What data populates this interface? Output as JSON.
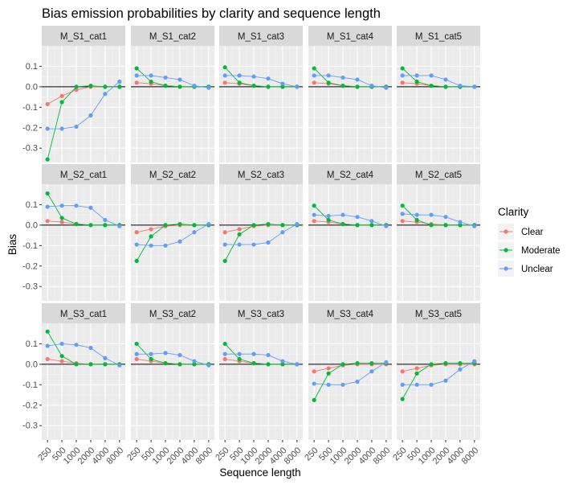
{
  "chart_data": {
    "type": "line",
    "title": "Bias emission probabilities by clarity and sequence length",
    "xlabel": "Sequence length",
    "ylabel": "Bias",
    "x": [
      "250",
      "500",
      "1000",
      "2000",
      "4000",
      "8000"
    ],
    "ylim": [
      -0.37,
      0.2
    ],
    "yticks": [
      0.1,
      0.0,
      -0.1,
      -0.2,
      -0.3
    ],
    "ytick_labels": [
      "0.1",
      "0.0",
      "-0.1",
      "-0.2",
      "-0.3"
    ],
    "hline": 0,
    "grid": true,
    "legend": {
      "title": "Clarity",
      "position": "right",
      "entries": [
        {
          "name": "Clear",
          "color": "#F8766D"
        },
        {
          "name": "Moderate",
          "color": "#00BA38"
        },
        {
          "name": "Unclear",
          "color": "#619CFF"
        }
      ]
    },
    "facets": [
      {
        "label": "M_S1_cat1",
        "series": {
          "Clear": [
            -0.085,
            -0.045,
            -0.015,
            0.0,
            0.0,
            0.0
          ],
          "Moderate": [
            -0.355,
            -0.075,
            0.0,
            0.005,
            0.0,
            0.0
          ],
          "Unclear": [
            -0.205,
            -0.205,
            -0.195,
            -0.14,
            -0.035,
            0.025
          ]
        }
      },
      {
        "label": "M_S1_cat2",
        "series": {
          "Clear": [
            0.02,
            0.015,
            0.005,
            0.0,
            0.0,
            0.0
          ],
          "Moderate": [
            0.09,
            0.025,
            0.005,
            0.0,
            0.0,
            0.0
          ],
          "Unclear": [
            0.055,
            0.055,
            0.045,
            0.035,
            0.005,
            -0.005
          ]
        }
      },
      {
        "label": "M_S1_cat3",
        "series": {
          "Clear": [
            0.02,
            0.015,
            0.005,
            0.0,
            0.0,
            0.0
          ],
          "Moderate": [
            0.095,
            0.02,
            0.005,
            0.0,
            0.0,
            0.0
          ],
          "Unclear": [
            0.055,
            0.055,
            0.05,
            0.04,
            0.015,
            0.0
          ]
        }
      },
      {
        "label": "M_S1_cat4",
        "series": {
          "Clear": [
            0.02,
            0.015,
            0.005,
            0.0,
            0.0,
            0.0
          ],
          "Moderate": [
            0.09,
            0.02,
            0.005,
            0.0,
            0.0,
            0.0
          ],
          "Unclear": [
            0.055,
            0.055,
            0.045,
            0.035,
            0.005,
            -0.005
          ]
        }
      },
      {
        "label": "M_S1_cat5",
        "series": {
          "Clear": [
            0.02,
            0.015,
            0.005,
            0.0,
            0.0,
            0.0
          ],
          "Moderate": [
            0.09,
            0.025,
            0.005,
            0.0,
            0.0,
            0.0
          ],
          "Unclear": [
            0.055,
            0.055,
            0.055,
            0.035,
            0.005,
            0.0
          ]
        }
      },
      {
        "label": "M_S2_cat1",
        "series": {
          "Clear": [
            0.02,
            0.015,
            0.005,
            0.0,
            0.0,
            0.0
          ],
          "Moderate": [
            0.155,
            0.035,
            0.005,
            0.0,
            0.0,
            0.0
          ],
          "Unclear": [
            0.09,
            0.095,
            0.095,
            0.085,
            0.025,
            -0.005
          ]
        }
      },
      {
        "label": "M_S2_cat2",
        "series": {
          "Clear": [
            -0.035,
            -0.02,
            -0.005,
            0.0,
            0.0,
            0.0
          ],
          "Moderate": [
            -0.175,
            -0.055,
            0.0,
            0.005,
            0.0,
            0.0
          ],
          "Unclear": [
            -0.095,
            -0.1,
            -0.1,
            -0.08,
            -0.035,
            0.005
          ]
        }
      },
      {
        "label": "M_S2_cat3",
        "series": {
          "Clear": [
            -0.035,
            -0.02,
            -0.005,
            0.0,
            0.0,
            0.0
          ],
          "Moderate": [
            -0.175,
            -0.045,
            0.0,
            0.005,
            0.0,
            0.0
          ],
          "Unclear": [
            -0.095,
            -0.095,
            -0.095,
            -0.085,
            -0.035,
            0.005
          ]
        }
      },
      {
        "label": "M_S2_cat4",
        "series": {
          "Clear": [
            0.02,
            0.015,
            0.005,
            0.0,
            0.0,
            0.0
          ],
          "Moderate": [
            0.095,
            0.025,
            0.005,
            0.0,
            0.0,
            0.0
          ],
          "Unclear": [
            0.05,
            0.045,
            0.05,
            0.04,
            0.02,
            -0.005
          ]
        }
      },
      {
        "label": "M_S2_cat5",
        "series": {
          "Clear": [
            0.02,
            0.015,
            0.005,
            0.0,
            0.0,
            0.0
          ],
          "Moderate": [
            0.095,
            0.025,
            0.0,
            0.0,
            0.0,
            0.0
          ],
          "Unclear": [
            0.055,
            0.05,
            0.05,
            0.04,
            0.015,
            -0.005
          ]
        }
      },
      {
        "label": "M_S3_cat1",
        "series": {
          "Clear": [
            0.025,
            0.015,
            0.005,
            0.0,
            0.0,
            0.0
          ],
          "Moderate": [
            0.16,
            0.04,
            0.0,
            0.0,
            0.0,
            0.0
          ],
          "Unclear": [
            0.09,
            0.1,
            0.095,
            0.08,
            0.03,
            -0.005
          ]
        }
      },
      {
        "label": "M_S3_cat2",
        "series": {
          "Clear": [
            0.025,
            0.015,
            0.005,
            0.0,
            0.0,
            0.0
          ],
          "Moderate": [
            0.1,
            0.025,
            0.005,
            0.0,
            0.0,
            0.0
          ],
          "Unclear": [
            0.05,
            0.05,
            0.055,
            0.045,
            0.015,
            -0.005
          ]
        }
      },
      {
        "label": "M_S3_cat3",
        "series": {
          "Clear": [
            0.025,
            0.015,
            0.005,
            0.0,
            0.0,
            0.0
          ],
          "Moderate": [
            0.1,
            0.025,
            0.005,
            0.0,
            0.0,
            0.0
          ],
          "Unclear": [
            0.05,
            0.05,
            0.05,
            0.045,
            0.015,
            0.0
          ]
        }
      },
      {
        "label": "M_S3_cat4",
        "series": {
          "Clear": [
            -0.035,
            -0.02,
            -0.005,
            0.0,
            0.0,
            0.0
          ],
          "Moderate": [
            -0.175,
            -0.045,
            0.0,
            0.005,
            0.005,
            0.005
          ],
          "Unclear": [
            -0.095,
            -0.1,
            -0.1,
            -0.085,
            -0.035,
            0.01
          ]
        }
      },
      {
        "label": "M_S3_cat5",
        "series": {
          "Clear": [
            -0.035,
            -0.02,
            -0.005,
            0.0,
            0.0,
            0.0
          ],
          "Moderate": [
            -0.17,
            -0.045,
            0.0,
            0.005,
            0.005,
            0.005
          ],
          "Unclear": [
            -0.1,
            -0.1,
            -0.1,
            -0.08,
            -0.025,
            0.015
          ]
        }
      }
    ]
  }
}
